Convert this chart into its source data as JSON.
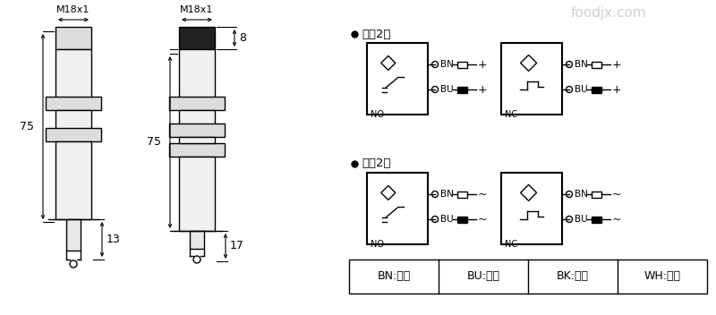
{
  "bg_color": "#ffffff",
  "line_color": "#000000",
  "sensor1_label": "M18x1",
  "sensor2_label": "M18x1",
  "dim1_75": "75",
  "dim1_13": "13",
  "dim2_75": "75",
  "dim2_17": "17",
  "dim2_8": "8",
  "dc_label": "直兵2线",
  "ac_label": "交兵2线",
  "no_label": "NO",
  "nc_label": "NC",
  "bn_label": "BN",
  "bu_label": "BU",
  "plus_label": "+",
  "tilde_label": "~",
  "legend_bn": "BN:棕色",
  "legend_bu": "BU:兰色",
  "legend_bk": "BK:黑色",
  "legend_wh": "WH:白色",
  "watermark": "foodjx.com"
}
